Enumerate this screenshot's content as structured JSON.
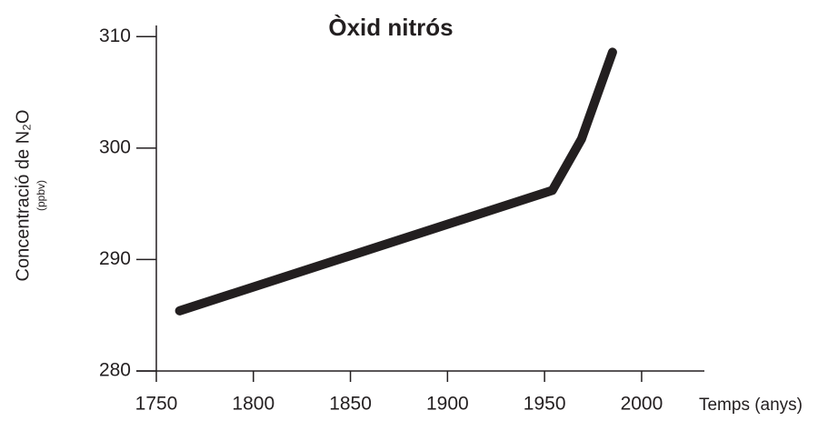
{
  "chart_data": {
    "type": "line",
    "title": "Òxid nitrós",
    "xlabel": "Temps (anys)",
    "ylabel": "Concentració de N₂O",
    "ylabel_unit": "(ppbv)",
    "series": [
      {
        "name": "N₂O",
        "color": "#231f20",
        "x": [
          1762,
          1954,
          1969,
          1985
        ],
        "values": [
          285.4,
          296.2,
          300.8,
          308.6
        ]
      }
    ],
    "xlim": [
      1750,
      2030
    ],
    "xticks": [
      1750,
      1800,
      1850,
      1900,
      1950,
      2000
    ],
    "ylim": [
      280,
      311
    ],
    "yticks": [
      280,
      290,
      300,
      310
    ],
    "grid": false
  }
}
